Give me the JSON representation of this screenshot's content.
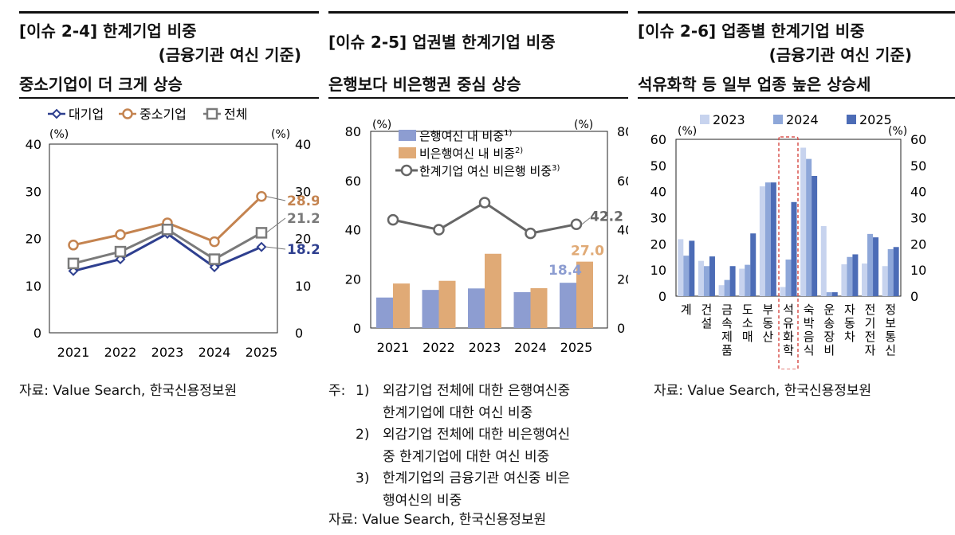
{
  "panel1": {
    "title_line1": "[이슈 2-4] 한계기업 비중",
    "title_line2": "(금융기관 여신 기준)",
    "subtitle": "중소기업이 더 크게 상승",
    "source": "자료: Value Search, 한국신용정보원"
  },
  "panel2": {
    "title": "[이슈 2-5] 업권별 한계기업 비중",
    "subtitle": "은행보다 비은행권 중심 상승",
    "notes": [
      {
        "k1": "주:",
        "k2": "1)",
        "text": "외감기업 전체에 대한 은행여신중"
      },
      {
        "k1": "",
        "k2": "",
        "text": "한계기업에 대한 여신 비중"
      },
      {
        "k1": "",
        "k2": "2)",
        "text": "외감기업 전체에 대한 비은행여신"
      },
      {
        "k1": "",
        "k2": "",
        "text": "중 한계기업에 대한 여신 비중"
      },
      {
        "k1": "",
        "k2": "3)",
        "text": "한계기업의 금융기관 여신중 비은"
      },
      {
        "k1": "",
        "k2": "",
        "text": "행여신의 비중"
      }
    ],
    "source": "자료: Value Search, 한국신용정보원"
  },
  "panel3": {
    "title_line1": "[이슈 2-6] 업종별 한계기업 비중",
    "title_line2": "(금융기관 여신 기준)",
    "subtitle": "석유화학 등 일부 업종 높은 상승세",
    "source": "자료: Value Search, 한국신용정보원"
  },
  "chart_data": [
    {
      "type": "line",
      "x": [
        "2021",
        "2022",
        "2023",
        "2024",
        "2025"
      ],
      "ylim": [
        0,
        40
      ],
      "yticks": [
        0,
        10,
        20,
        30,
        40
      ],
      "unit_left": "(%)",
      "unit_right": "(%)",
      "legend_position": "top",
      "series": [
        {
          "name": "대기업",
          "values": [
            13.1,
            15.6,
            21.0,
            13.9,
            18.2
          ],
          "color": "#2e3f8f",
          "marker": "diamond"
        },
        {
          "name": "중소기업",
          "values": [
            18.6,
            20.8,
            23.3,
            19.3,
            28.9
          ],
          "color": "#c4834f",
          "marker": "circle"
        },
        {
          "name": "전체",
          "values": [
            14.7,
            17.2,
            21.9,
            15.6,
            21.2
          ],
          "color": "#7a7a7a",
          "marker": "square"
        }
      ],
      "end_labels": [
        "18.2",
        "28.9",
        "21.2"
      ]
    },
    {
      "type": "bar",
      "categories": [
        "2021",
        "2022",
        "2023",
        "2024",
        "2025"
      ],
      "ylim": [
        0,
        80
      ],
      "yticks": [
        0,
        20,
        40,
        60,
        80
      ],
      "unit_left": "(%)",
      "unit_right": "(%)",
      "legend_position": "top",
      "series": [
        {
          "name": "은행여신 내 비중",
          "sup": "1)",
          "values": [
            12.4,
            15.5,
            16.1,
            14.6,
            18.4
          ],
          "color": "#8d9dd1",
          "kind": "bar"
        },
        {
          "name": "비은행여신 내 비중",
          "sup": "2)",
          "values": [
            18.1,
            19.2,
            30.2,
            16.2,
            27.0
          ],
          "color": "#e0aa76",
          "kind": "bar"
        },
        {
          "name": "한계기업 여신 비은행 비중",
          "sup": "3)",
          "values": [
            44.0,
            40.0,
            51.0,
            38.5,
            42.2
          ],
          "color": "#666666",
          "kind": "line"
        }
      ],
      "end_labels": [
        "18.4",
        "27.0",
        "42.2"
      ]
    },
    {
      "type": "bar",
      "categories": [
        "계",
        "건설",
        "금속제품",
        "도소매",
        "부동산",
        "석유화학",
        "숙박음식",
        "운송장비",
        "자동차",
        "전기전자",
        "정보통신"
      ],
      "ylim": [
        0,
        60
      ],
      "yticks": [
        0,
        10,
        20,
        30,
        40,
        50,
        60
      ],
      "unit_left": "(%)",
      "unit_right": "(%)",
      "legend_position": "top",
      "highlight": "석유화학",
      "series": [
        {
          "name": "2023",
          "values": [
            21.8,
            13.5,
            4.2,
            10.5,
            42.0,
            3.5,
            56.8,
            26.8,
            12.2,
            12.5,
            11.5
          ],
          "color": "#c7d3ee"
        },
        {
          "name": "2024",
          "values": [
            15.5,
            11.5,
            6.2,
            12.0,
            43.5,
            14.0,
            52.5,
            1.5,
            15.0,
            23.8,
            18.0
          ],
          "color": "#8ea7d9"
        },
        {
          "name": "2025",
          "values": [
            21.2,
            15.2,
            11.5,
            24.0,
            43.5,
            36.0,
            46.0,
            1.5,
            16.0,
            22.5,
            18.8
          ],
          "color": "#4c6cb6"
        }
      ]
    }
  ]
}
